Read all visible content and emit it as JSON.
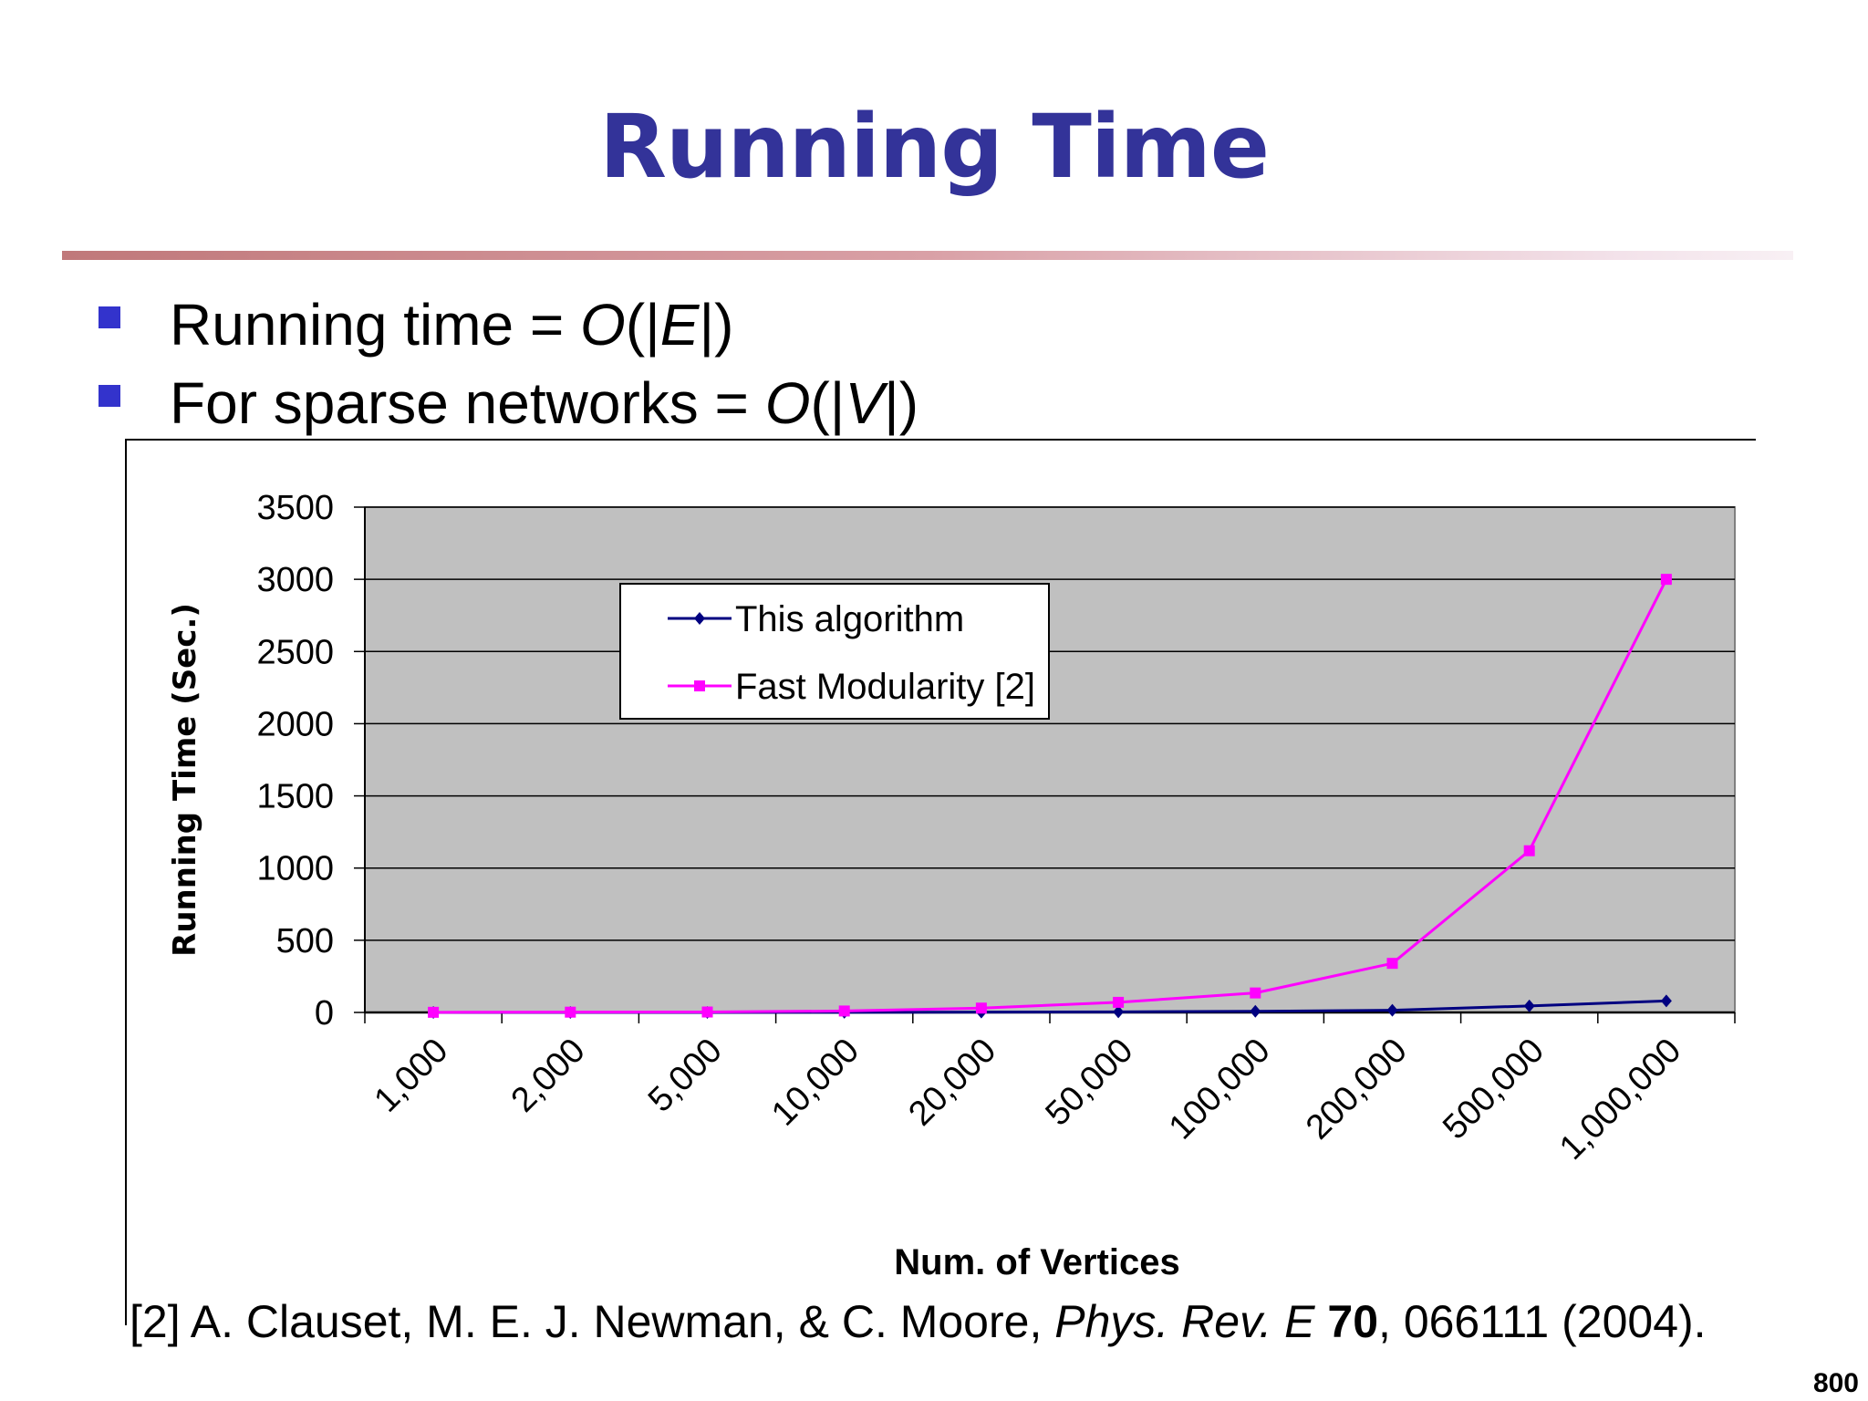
{
  "slide": {
    "title": "Running Time",
    "bullets": [
      {
        "prefix": "Running time = ",
        "o": "O",
        "open": "(|",
        "var": "E",
        "close": "|)"
      },
      {
        "prefix": "For sparse networks = ",
        "o": "O",
        "open": "(|",
        "var": "V",
        "close": "|)"
      }
    ],
    "footnote": {
      "lead": "[2] A. Clauset, M. E. J. Newman, & C. Moore, ",
      "journal": "Phys. Rev. E",
      "volume": " 70",
      "tail": ", 066111 (2004)."
    },
    "page_number": "800",
    "colors": {
      "title": "#333399",
      "bullet": "#3333cc"
    }
  },
  "chart_data": {
    "type": "line",
    "title": "",
    "xlabel": "Num. of Vertices",
    "ylabel": "Running Time (Sec.)",
    "categories": [
      "1,000",
      "2,000",
      "5,000",
      "10,000",
      "20,000",
      "50,000",
      "100,000",
      "200,000",
      "500,000",
      "1,000,000"
    ],
    "ylim": [
      0,
      3500
    ],
    "yticks": [
      0,
      500,
      1000,
      1500,
      2000,
      2500,
      3000,
      3500
    ],
    "grid": true,
    "legend_position": "top-center",
    "series": [
      {
        "name": "This algorithm",
        "color": "#000080",
        "marker": "diamond",
        "values": [
          0,
          0,
          0,
          1,
          2,
          4,
          8,
          15,
          45,
          80
        ]
      },
      {
        "name": "Fast Modularity [2]",
        "color": "#ff00ff",
        "marker": "square",
        "values": [
          1,
          2,
          3,
          10,
          30,
          70,
          135,
          340,
          1120,
          3000
        ]
      }
    ],
    "colors": {
      "plot_bg": "#c0c0c0",
      "grid": "#000000"
    }
  }
}
